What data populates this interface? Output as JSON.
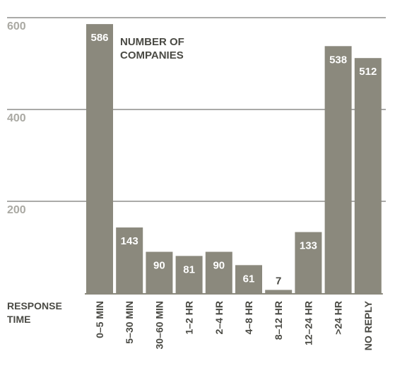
{
  "chart_data": {
    "type": "bar",
    "categories": [
      "0–5 MIN",
      "5–30 MIN",
      "30–60 MIN",
      "1–2 HR",
      "2–4 HR",
      "4–8 HR",
      "8–12 HR",
      "12–24 HR",
      ">24 HR",
      "NO REPLY"
    ],
    "values": [
      586,
      143,
      90,
      81,
      90,
      61,
      7,
      133,
      538,
      512
    ],
    "yticks": [
      200,
      400,
      600
    ],
    "ylim": [
      0,
      600
    ],
    "grid": true,
    "annotation": [
      "NUMBER OF",
      "COMPANIES"
    ],
    "xlabel": [
      "RESPONSE",
      "TIME"
    ],
    "colors": {
      "bar": "#8b897d",
      "tick": "#aaa9a3",
      "text": "#4a4a44"
    }
  }
}
